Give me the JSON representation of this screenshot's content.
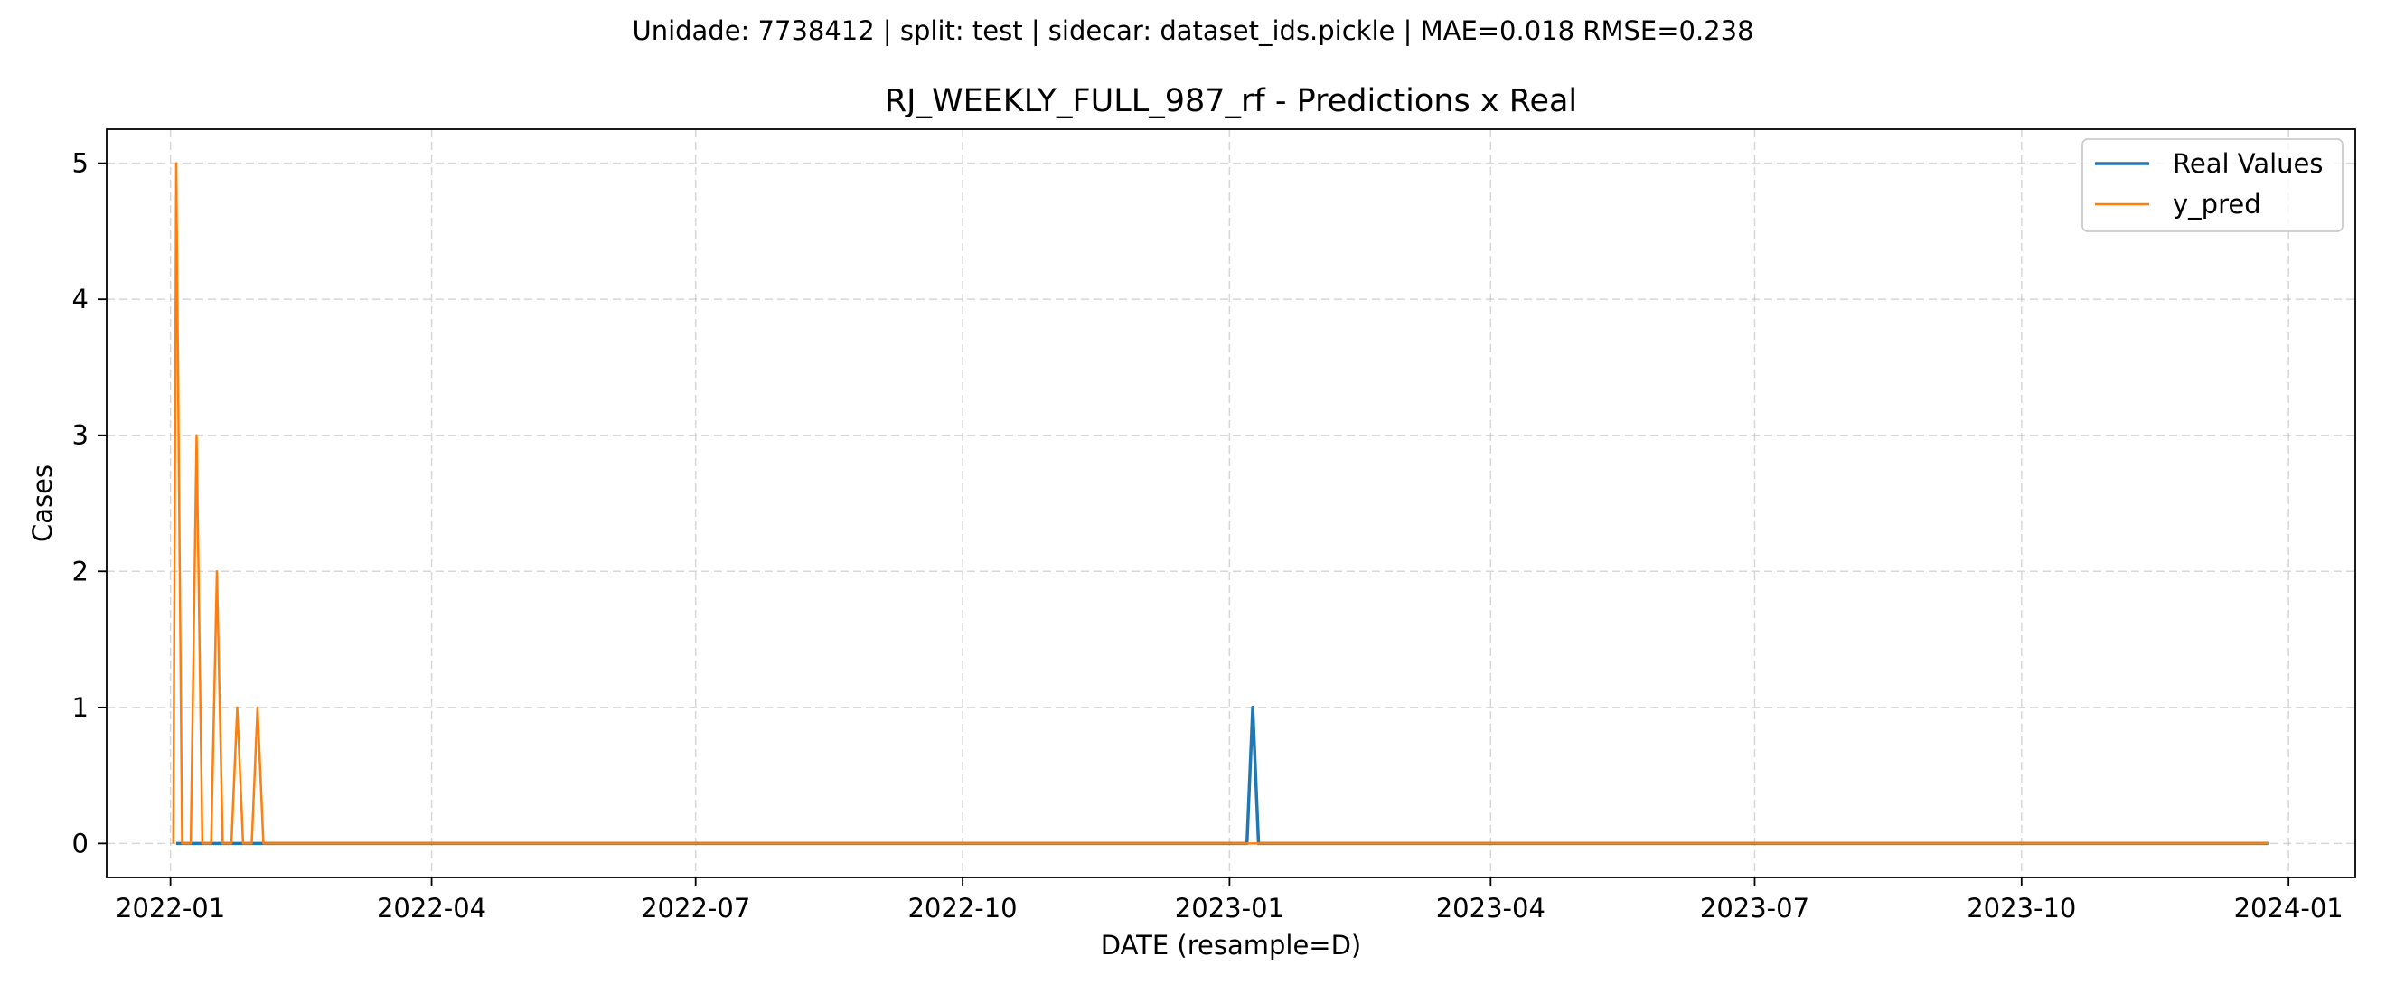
{
  "suptitle": "Unidade: 7738412 | split: test | sidecar: dataset_ids.pickle | MAE=0.018  RMSE=0.238",
  "chart_data": {
    "type": "line",
    "title": "RJ_WEEKLY_FULL_987_rf - Predictions x Real",
    "xlabel": "DATE (resample=D)",
    "ylabel": "Cases",
    "x_tick_labels": [
      "2022-01",
      "2022-04",
      "2022-07",
      "2022-10",
      "2023-01",
      "2023-04",
      "2023-07",
      "2023-10",
      "2024-01"
    ],
    "y_tick_labels": [
      "0",
      "1",
      "2",
      "3",
      "4",
      "5"
    ],
    "xlim": [
      "2021-12-10",
      "2024-01-24"
    ],
    "ylim": [
      -0.25,
      5.25
    ],
    "grid": true,
    "legend_position": "top-right",
    "series": [
      {
        "name": "Real Values",
        "color": "#1f77b4",
        "points": [
          [
            "2022-01-03",
            0
          ],
          [
            "2023-01-07",
            0
          ],
          [
            "2023-01-09",
            1
          ],
          [
            "2023-01-11",
            0
          ],
          [
            "2023-12-25",
            0
          ]
        ]
      },
      {
        "name": "y_pred",
        "color": "#ff7f0e",
        "points": [
          [
            "2022-01-02",
            0
          ],
          [
            "2022-01-03",
            5
          ],
          [
            "2022-01-05",
            0
          ],
          [
            "2022-01-08",
            0
          ],
          [
            "2022-01-10",
            3
          ],
          [
            "2022-01-12",
            0
          ],
          [
            "2022-01-15",
            0
          ],
          [
            "2022-01-17",
            2
          ],
          [
            "2022-01-19",
            0
          ],
          [
            "2022-01-22",
            0
          ],
          [
            "2022-01-24",
            1
          ],
          [
            "2022-01-26",
            0
          ],
          [
            "2022-01-29",
            0
          ],
          [
            "2022-01-31",
            1
          ],
          [
            "2022-02-02",
            0
          ],
          [
            "2023-12-25",
            0
          ]
        ]
      }
    ]
  }
}
